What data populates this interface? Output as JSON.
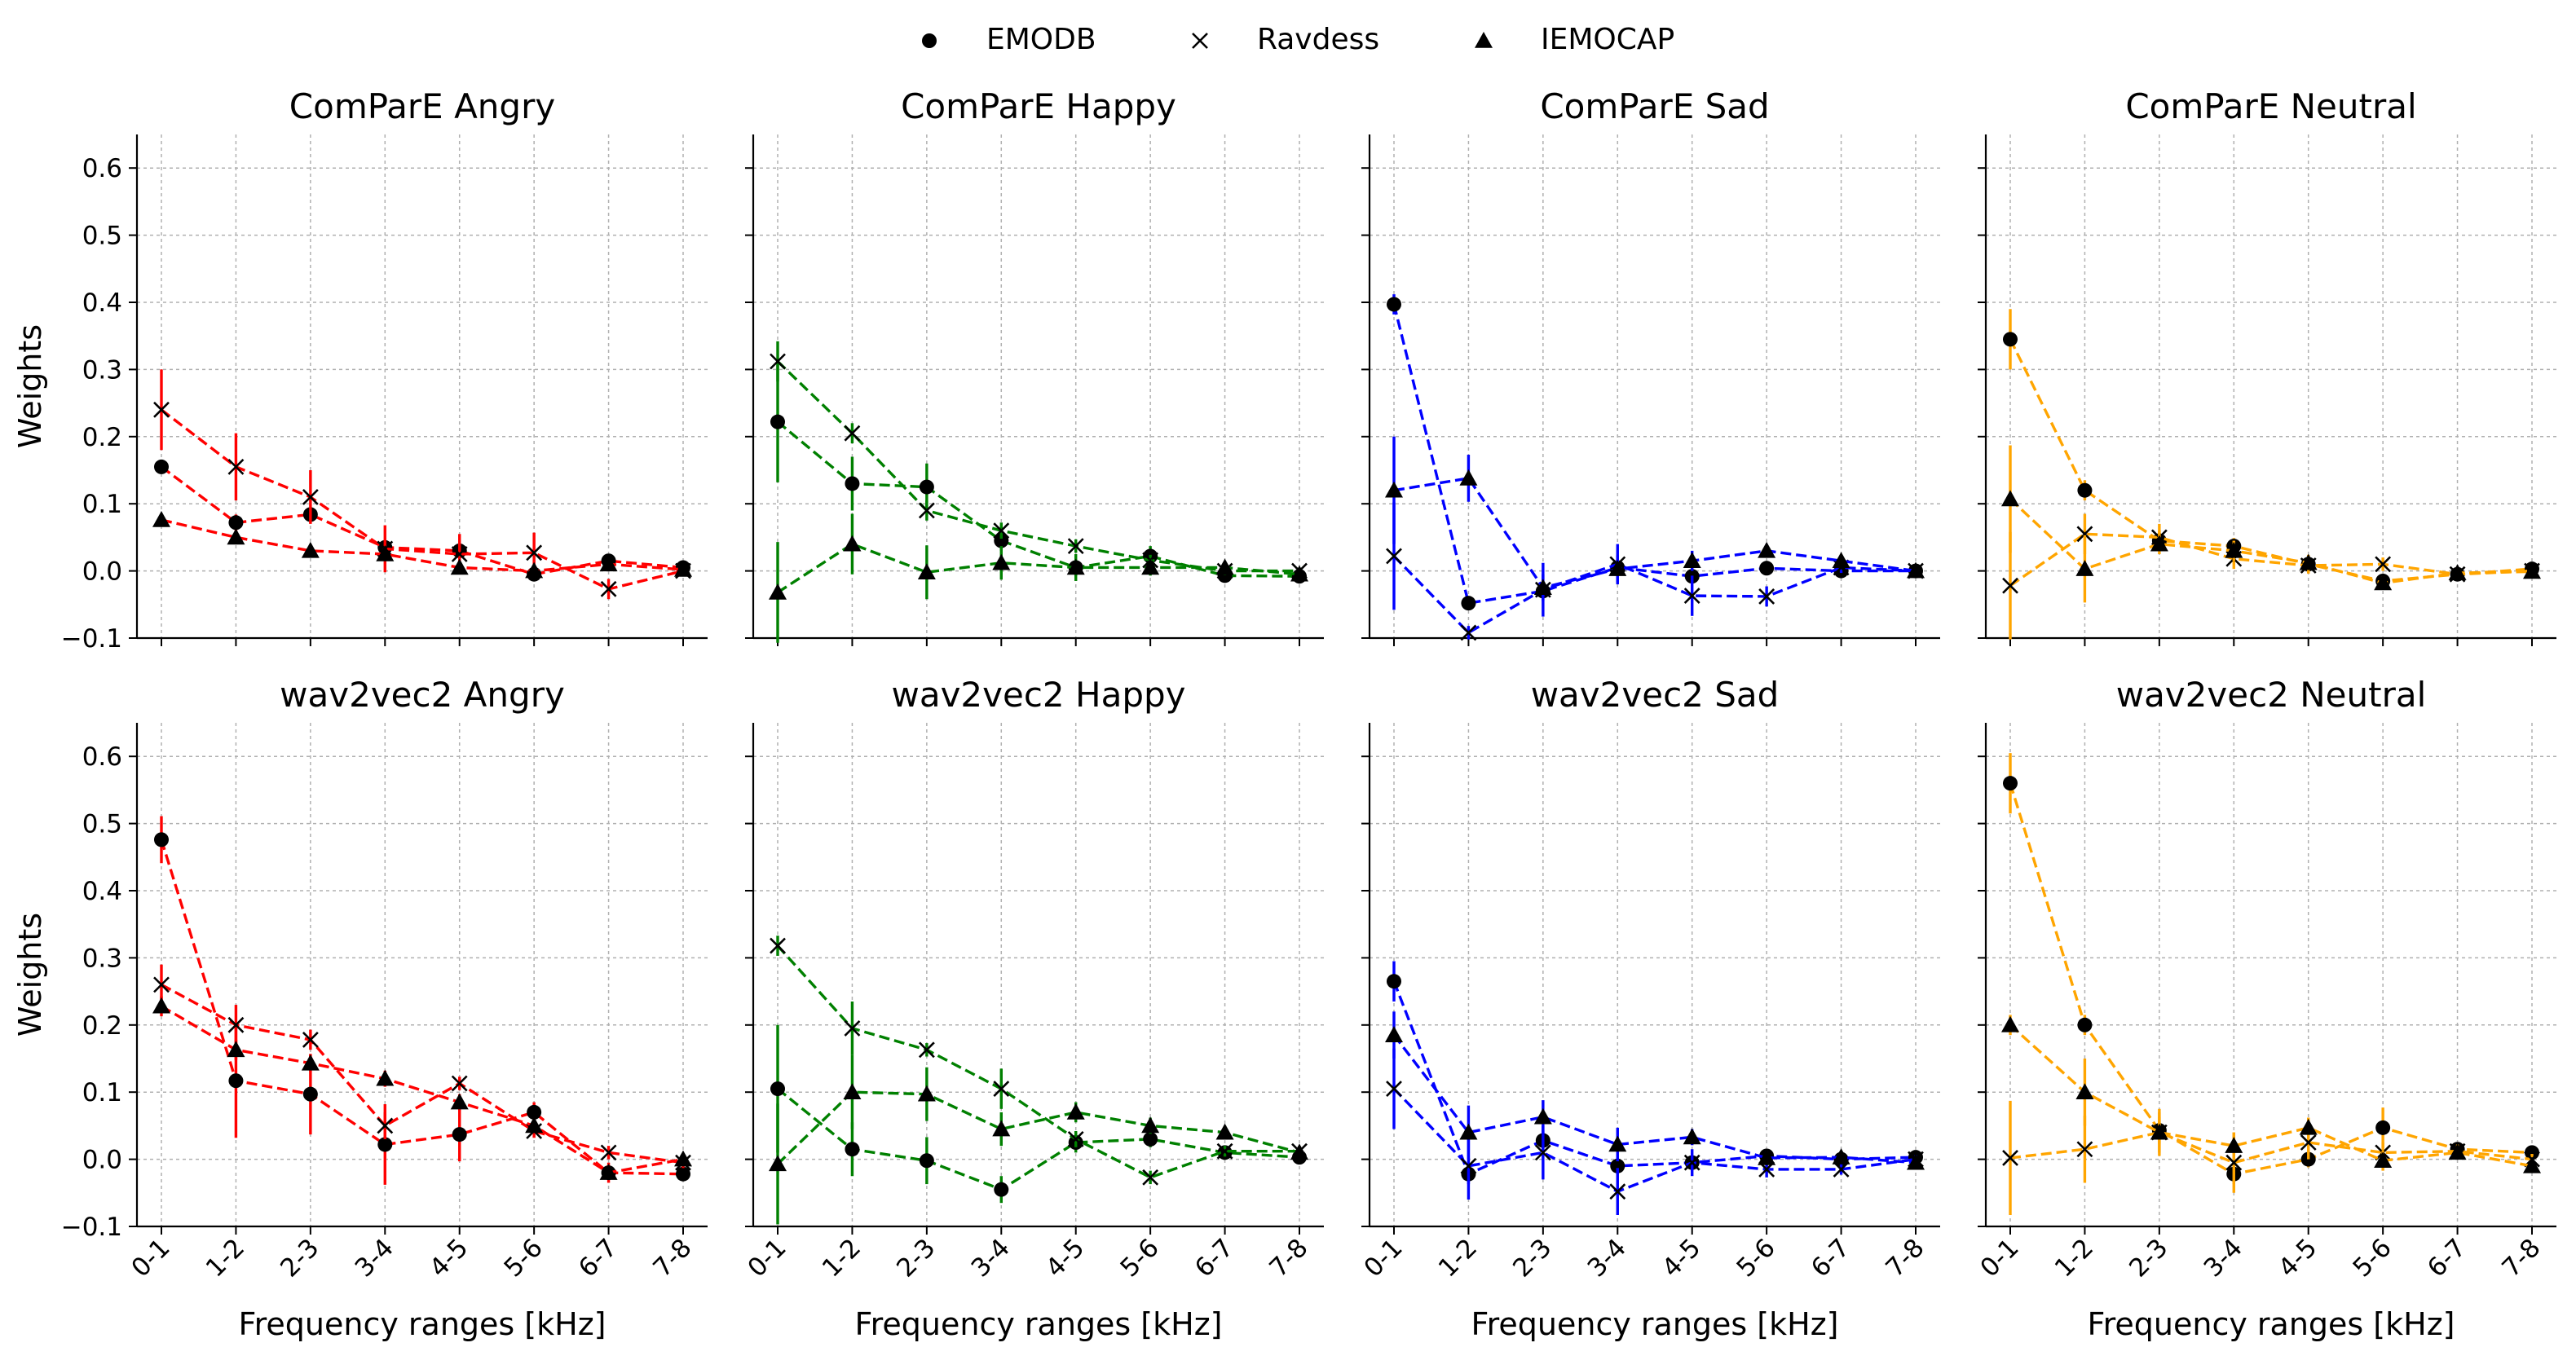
{
  "legend": {
    "placement": "top-center",
    "entries": [
      {
        "name": "EMODB",
        "marker": "circle"
      },
      {
        "name": "Ravdess",
        "marker": "x"
      },
      {
        "name": "IEMOCAP",
        "marker": "triangle"
      }
    ]
  },
  "chart_data": [
    {
      "type": "line",
      "title": "ComParE Angry",
      "color": "#ff0000",
      "ylabel": "Weights",
      "xlabel": "",
      "categories": [
        "0-1",
        "1-2",
        "2-3",
        "3-4",
        "4-5",
        "5-6",
        "6-7",
        "7-8"
      ],
      "ylim": [
        -0.1,
        0.65
      ],
      "yticks": [
        "−0.1",
        "0.0",
        "0.1",
        "0.2",
        "0.3",
        "0.4",
        "0.5",
        "0.6"
      ],
      "grid": true,
      "series": [
        {
          "name": "EMODB",
          "values": [
            0.155,
            0.072,
            0.084,
            0.035,
            0.03,
            -0.005,
            0.015,
            0.005
          ],
          "err": [
            0.01,
            0.012,
            0.01,
            0.008,
            0.008,
            0.008,
            0.008,
            0.006
          ]
        },
        {
          "name": "Ravdess",
          "values": [
            0.24,
            0.155,
            0.11,
            0.033,
            0.025,
            0.027,
            -0.027,
            0.0
          ],
          "err": [
            0.06,
            0.05,
            0.04,
            0.035,
            0.03,
            0.03,
            0.015,
            0.008
          ]
        },
        {
          "name": "IEMOCAP",
          "values": [
            0.076,
            0.05,
            0.03,
            0.025,
            0.005,
            0.0,
            0.01,
            0.002
          ],
          "err": [
            0.008,
            0.01,
            0.01,
            0.01,
            0.008,
            0.008,
            0.006,
            0.005
          ]
        }
      ]
    },
    {
      "type": "line",
      "title": "ComParE Happy",
      "color": "#008000",
      "ylabel": "",
      "xlabel": "",
      "categories": [
        "0-1",
        "1-2",
        "2-3",
        "3-4",
        "4-5",
        "5-6",
        "6-7",
        "7-8"
      ],
      "ylim": [
        -0.1,
        0.65
      ],
      "yticks": [
        "−0.1",
        "0.0",
        "0.1",
        "0.2",
        "0.3",
        "0.4",
        "0.5",
        "0.6"
      ],
      "grid": true,
      "series": [
        {
          "name": "EMODB",
          "values": [
            0.222,
            0.13,
            0.125,
            0.045,
            0.005,
            0.022,
            -0.007,
            -0.008
          ],
          "err": [
            0.09,
            0.04,
            0.035,
            0.015,
            0.012,
            0.015,
            0.008,
            0.006
          ]
        },
        {
          "name": "Ravdess",
          "values": [
            0.312,
            0.205,
            0.09,
            0.06,
            0.037,
            0.016,
            0.0,
            0.0
          ],
          "err": [
            0.03,
            0.015,
            0.015,
            0.012,
            0.01,
            0.008,
            0.006,
            0.005
          ]
        },
        {
          "name": "IEMOCAP",
          "values": [
            -0.032,
            0.04,
            -0.002,
            0.012,
            0.005,
            0.005,
            0.005,
            -0.005
          ],
          "err": [
            0.075,
            0.045,
            0.04,
            0.025,
            0.02,
            0.012,
            0.008,
            0.006
          ]
        }
      ]
    },
    {
      "type": "line",
      "title": "ComParE Sad",
      "color": "#0000ff",
      "ylabel": "",
      "xlabel": "",
      "categories": [
        "0-1",
        "1-2",
        "2-3",
        "3-4",
        "4-5",
        "5-6",
        "6-7",
        "7-8"
      ],
      "ylim": [
        -0.1,
        0.65
      ],
      "yticks": [
        "−0.1",
        "0.0",
        "0.1",
        "0.2",
        "0.3",
        "0.4",
        "0.5",
        "0.6"
      ],
      "grid": true,
      "series": [
        {
          "name": "EMODB",
          "values": [
            0.397,
            -0.048,
            -0.03,
            0.005,
            -0.008,
            0.004,
            0.0,
            0.0
          ],
          "err": [
            0.015,
            0.01,
            0.01,
            0.008,
            0.008,
            0.006,
            0.006,
            0.005
          ]
        },
        {
          "name": "Ravdess",
          "values": [
            0.022,
            -0.092,
            -0.028,
            0.01,
            -0.037,
            -0.038,
            0.005,
            0.0
          ],
          "err": [
            0.08,
            0.01,
            0.04,
            0.03,
            0.03,
            0.015,
            0.008,
            0.005
          ]
        },
        {
          "name": "IEMOCAP",
          "values": [
            0.12,
            0.138,
            -0.025,
            0.003,
            0.015,
            0.03,
            0.015,
            0.0
          ],
          "err": [
            0.08,
            0.035,
            0.02,
            0.02,
            0.015,
            0.01,
            0.008,
            0.005
          ]
        }
      ]
    },
    {
      "type": "line",
      "title": "ComParE Neutral",
      "color": "#ffa500",
      "ylabel": "",
      "xlabel": "",
      "categories": [
        "0-1",
        "1-2",
        "2-3",
        "3-4",
        "4-5",
        "5-6",
        "6-7",
        "7-8"
      ],
      "ylim": [
        -0.1,
        0.65
      ],
      "yticks": [
        "−0.1",
        "0.0",
        "0.1",
        "0.2",
        "0.3",
        "0.4",
        "0.5",
        "0.6"
      ],
      "grid": true,
      "series": [
        {
          "name": "EMODB",
          "values": [
            0.345,
            0.12,
            0.045,
            0.037,
            0.01,
            -0.015,
            -0.005,
            0.003
          ],
          "err": [
            0.045,
            0.015,
            0.015,
            0.012,
            0.01,
            0.01,
            0.006,
            0.005
          ]
        },
        {
          "name": "Ravdess",
          "values": [
            -0.022,
            0.055,
            0.05,
            0.018,
            0.008,
            0.01,
            -0.005,
            0.0
          ],
          "err": [
            0.08,
            0.03,
            0.02,
            0.015,
            0.012,
            0.01,
            0.006,
            0.005
          ]
        },
        {
          "name": "IEMOCAP",
          "values": [
            0.107,
            0.003,
            0.04,
            0.03,
            0.012,
            -0.018,
            -0.003,
            -0.001
          ],
          "err": [
            0.08,
            0.05,
            0.015,
            0.015,
            0.012,
            0.01,
            0.006,
            0.005
          ]
        }
      ]
    },
    {
      "type": "line",
      "title": "wav2vec2 Angry",
      "color": "#ff0000",
      "ylabel": "Weights",
      "xlabel": "Frequency ranges [kHz]",
      "categories": [
        "0-1",
        "1-2",
        "2-3",
        "3-4",
        "4-5",
        "5-6",
        "6-7",
        "7-8"
      ],
      "ylim": [
        -0.1,
        0.65
      ],
      "yticks": [
        "−0.1",
        "0.0",
        "0.1",
        "0.2",
        "0.3",
        "0.4",
        "0.5",
        "0.6"
      ],
      "grid": true,
      "series": [
        {
          "name": "EMODB",
          "values": [
            0.476,
            0.117,
            0.097,
            0.022,
            0.037,
            0.07,
            -0.02,
            -0.022
          ],
          "err": [
            0.035,
            0.085,
            0.06,
            0.06,
            0.04,
            0.015,
            0.015,
            0.008
          ]
        },
        {
          "name": "Ravdess",
          "values": [
            0.26,
            0.2,
            0.178,
            0.05,
            0.113,
            0.042,
            0.01,
            -0.005
          ],
          "err": [
            0.03,
            0.03,
            0.015,
            0.02,
            0.01,
            0.01,
            0.01,
            0.008
          ]
        },
        {
          "name": "IEMOCAP",
          "values": [
            0.228,
            0.163,
            0.143,
            0.12,
            0.085,
            0.05,
            -0.02,
            0.0
          ],
          "err": [
            0.015,
            0.015,
            0.012,
            0.012,
            0.012,
            0.01,
            0.01,
            0.008
          ]
        }
      ]
    },
    {
      "type": "line",
      "title": "wav2vec2 Happy",
      "color": "#008000",
      "ylabel": "",
      "xlabel": "Frequency ranges [kHz]",
      "categories": [
        "0-1",
        "1-2",
        "2-3",
        "3-4",
        "4-5",
        "5-6",
        "6-7",
        "7-8"
      ],
      "ylim": [
        -0.1,
        0.65
      ],
      "yticks": [
        "−0.1",
        "0.0",
        "0.1",
        "0.2",
        "0.3",
        "0.4",
        "0.5",
        "0.6"
      ],
      "grid": true,
      "series": [
        {
          "name": "EMODB",
          "values": [
            0.105,
            0.015,
            -0.002,
            -0.045,
            0.025,
            0.03,
            0.01,
            0.003
          ],
          "err": [
            0.095,
            0.04,
            0.035,
            0.02,
            0.015,
            0.012,
            0.008,
            0.006
          ]
        },
        {
          "name": "Ravdess",
          "values": [
            0.318,
            0.195,
            0.163,
            0.105,
            0.03,
            -0.027,
            0.012,
            0.012
          ],
          "err": [
            0.015,
            0.04,
            0.01,
            0.03,
            0.012,
            0.01,
            0.008,
            0.006
          ]
        },
        {
          "name": "IEMOCAP",
          "values": [
            -0.007,
            0.1,
            0.097,
            0.045,
            0.07,
            0.05,
            0.04,
            0.01
          ],
          "err": [
            0.09,
            0.055,
            0.04,
            0.025,
            0.015,
            0.012,
            0.01,
            0.008
          ]
        }
      ]
    },
    {
      "type": "line",
      "title": "wav2vec2 Sad",
      "color": "#0000ff",
      "ylabel": "",
      "xlabel": "Frequency ranges [kHz]",
      "categories": [
        "0-1",
        "1-2",
        "2-3",
        "3-4",
        "4-5",
        "5-6",
        "6-7",
        "7-8"
      ],
      "ylim": [
        -0.1,
        0.65
      ],
      "yticks": [
        "−0.1",
        "0.0",
        "0.1",
        "0.2",
        "0.3",
        "0.4",
        "0.5",
        "0.6"
      ],
      "grid": true,
      "series": [
        {
          "name": "EMODB",
          "values": [
            0.265,
            -0.022,
            0.028,
            -0.01,
            -0.005,
            0.005,
            0.0,
            0.003
          ],
          "err": [
            0.03,
            0.015,
            0.015,
            0.012,
            0.01,
            0.008,
            0.006,
            0.005
          ]
        },
        {
          "name": "Ravdess",
          "values": [
            0.105,
            -0.01,
            0.01,
            -0.048,
            -0.005,
            -0.015,
            -0.015,
            0.0
          ],
          "err": [
            0.06,
            0.05,
            0.04,
            0.035,
            0.02,
            0.012,
            0.008,
            0.006
          ]
        },
        {
          "name": "IEMOCAP",
          "values": [
            0.185,
            0.04,
            0.063,
            0.022,
            0.033,
            0.002,
            0.003,
            -0.005
          ],
          "err": [
            0.035,
            0.04,
            0.025,
            0.025,
            0.012,
            0.01,
            0.008,
            0.005
          ]
        }
      ]
    },
    {
      "type": "line",
      "title": "wav2vec2 Neutral",
      "color": "#ffa500",
      "ylabel": "",
      "xlabel": "Frequency ranges [kHz]",
      "categories": [
        "0-1",
        "1-2",
        "2-3",
        "3-4",
        "4-5",
        "5-6",
        "6-7",
        "7-8"
      ],
      "ylim": [
        -0.1,
        0.65
      ],
      "yticks": [
        "−0.1",
        "0.0",
        "0.1",
        "0.2",
        "0.3",
        "0.4",
        "0.5",
        "0.6"
      ],
      "grid": true,
      "series": [
        {
          "name": "EMODB",
          "values": [
            0.56,
            0.2,
            0.043,
            -0.022,
            0.0,
            0.047,
            0.015,
            0.01
          ],
          "err": [
            0.045,
            0.015,
            0.02,
            0.015,
            0.012,
            0.03,
            0.01,
            0.008
          ]
        },
        {
          "name": "Ravdess",
          "values": [
            0.002,
            0.015,
            0.04,
            -0.005,
            0.025,
            0.01,
            0.012,
            0.0
          ],
          "err": [
            0.085,
            0.05,
            0.035,
            0.045,
            0.025,
            0.015,
            0.01,
            0.008
          ]
        },
        {
          "name": "IEMOCAP",
          "values": [
            0.2,
            0.1,
            0.04,
            0.02,
            0.047,
            -0.002,
            0.01,
            -0.01
          ],
          "err": [
            0.015,
            0.05,
            0.03,
            0.02,
            0.015,
            0.015,
            0.01,
            0.008
          ]
        }
      ]
    }
  ]
}
